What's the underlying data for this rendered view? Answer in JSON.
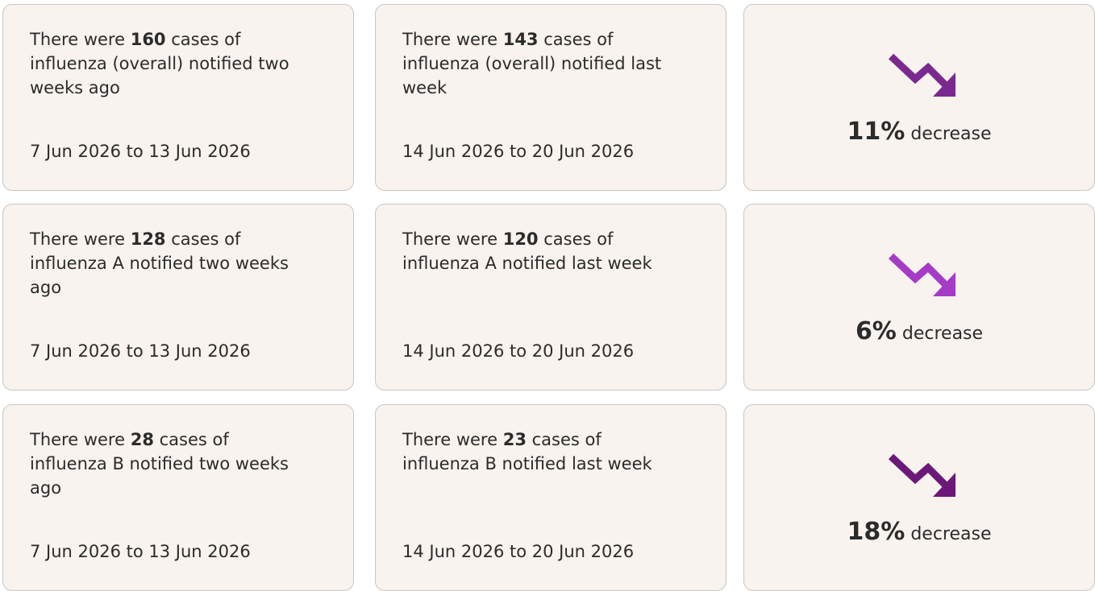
{
  "rows": [
    {
      "previous": {
        "lead": "There were",
        "count": "160",
        "rest": "cases of influenza (overall) notified two weeks ago",
        "dates": "7 Jun 2026 to 13 Jun 2026"
      },
      "current": {
        "lead": "There were",
        "count": "143",
        "rest": "cases of influenza (overall) notified last week",
        "dates": "14 Jun 2026 to 20 Jun 2026"
      },
      "change": {
        "value": "11%",
        "text": "decrease"
      }
    },
    {
      "previous": {
        "lead": "There were",
        "count": "128",
        "rest": "cases of influenza A notified two weeks ago",
        "dates": "7 Jun 2026 to 13 Jun 2026"
      },
      "current": {
        "lead": "There were",
        "count": "120",
        "rest": "cases of influenza A notified last week",
        "dates": "14 Jun 2026 to 20 Jun 2026"
      },
      "change": {
        "value": "6%",
        "text": "decrease"
      }
    },
    {
      "previous": {
        "lead": "There were",
        "count": "28",
        "rest": "cases of influenza B notified two weeks ago",
        "dates": "7 Jun 2026 to 13 Jun 2026"
      },
      "current": {
        "lead": "There were",
        "count": "23",
        "rest": "cases of influenza B notified last week",
        "dates": "14 Jun 2026 to 20 Jun 2026"
      },
      "change": {
        "value": "18%",
        "text": "decrease"
      }
    }
  ]
}
